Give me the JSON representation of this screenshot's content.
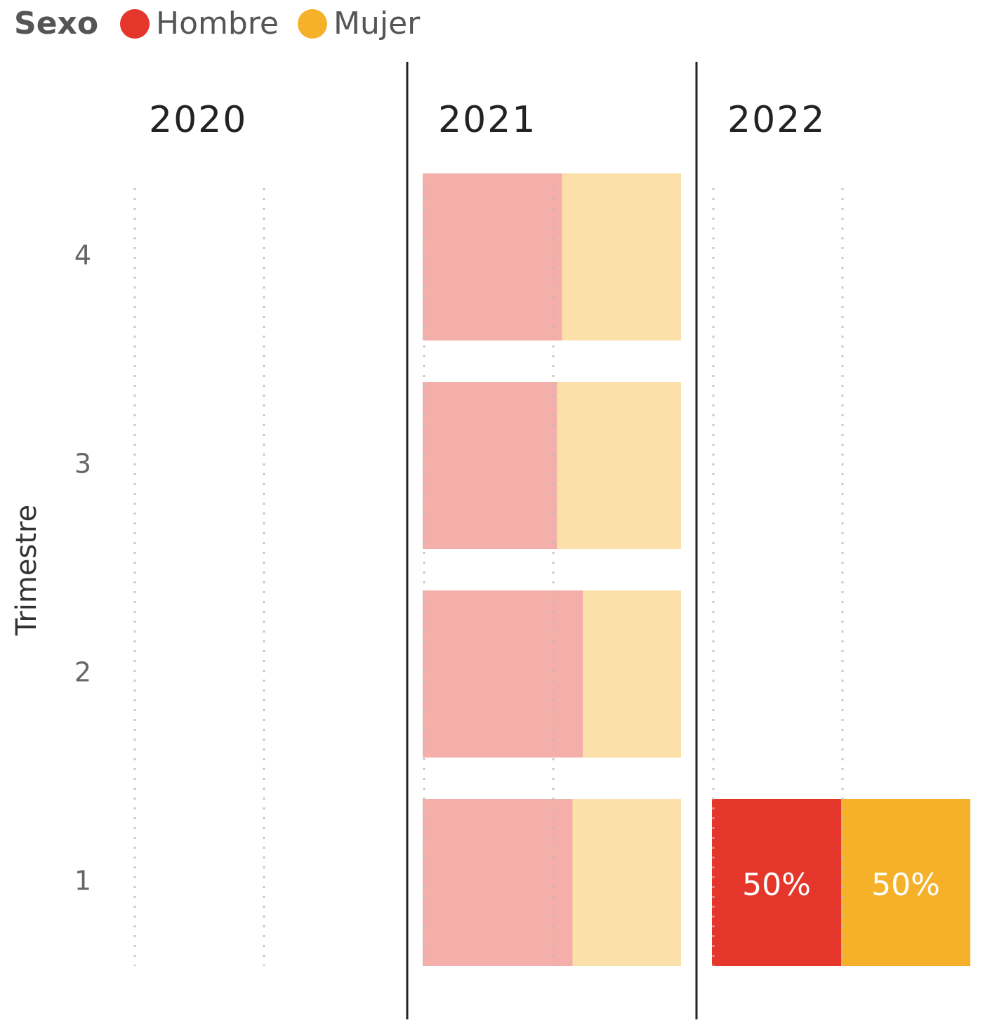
{
  "chart_data": {
    "type": "bar",
    "stacked": "percent",
    "legend_title": "Sexo",
    "y_label": "Trimestre",
    "series": [
      {
        "name": "Hombre",
        "color": "#e4362a"
      },
      {
        "name": "Mujer",
        "color": "#f5b12a"
      }
    ],
    "categories": [
      "4",
      "3",
      "2",
      "1"
    ],
    "xlim": [
      0,
      100
    ],
    "xticks": [
      0,
      50
    ],
    "grid": true,
    "panels": [
      {
        "title": "2020",
        "faded": false,
        "values": [
          [
            null,
            null,
            null,
            null
          ],
          [
            null,
            null,
            null,
            null
          ]
        ]
      },
      {
        "title": "2021",
        "faded": true,
        "values": [
          [
            54,
            52,
            62,
            58
          ],
          [
            46,
            48,
            38,
            42
          ]
        ]
      },
      {
        "title": "2022",
        "faded": false,
        "values": [
          [
            null,
            null,
            null,
            50
          ],
          [
            null,
            null,
            null,
            50
          ]
        ],
        "value_labels": [
          [
            null,
            null,
            null,
            "50%"
          ],
          [
            null,
            null,
            null,
            "50%"
          ]
        ]
      }
    ]
  }
}
